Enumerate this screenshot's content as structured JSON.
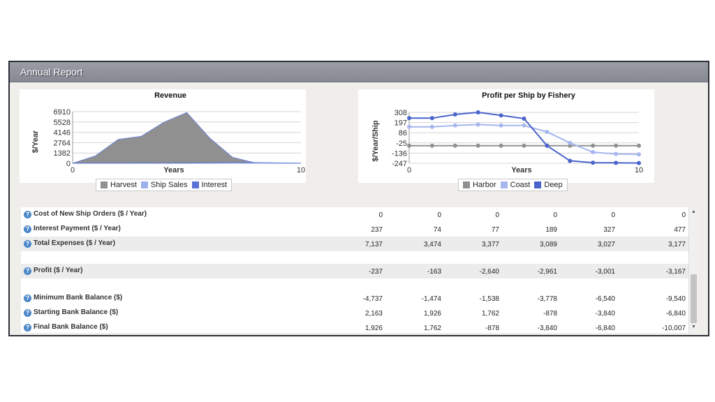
{
  "window": {
    "title": "Annual Report"
  },
  "charts": {
    "revenue": {
      "title": "Revenue",
      "ylabel": "$/Year",
      "xlabel": "Years",
      "y_ticks": [
        "6910",
        "5528",
        "4146",
        "2764",
        "1382",
        "0"
      ],
      "x_ticks": [
        "0",
        "10"
      ],
      "legend": [
        {
          "label": "Harvest",
          "color": "#909090"
        },
        {
          "label": "Ship Sales",
          "color": "#9cb0ec"
        },
        {
          "label": "Interest",
          "color": "#5a73d4"
        }
      ]
    },
    "profit": {
      "title": "Profit per Ship by Fishery",
      "ylabel": "$/Year/Ship",
      "xlabel": "Years",
      "y_ticks": [
        "308",
        "197",
        "86",
        "-25",
        "-136",
        "-247"
      ],
      "x_ticks": [
        "0",
        "10"
      ],
      "legend": [
        {
          "label": "Harbor",
          "color": "#909090"
        },
        {
          "label": "Coast",
          "color": "#a6b6ee"
        },
        {
          "label": "Deep",
          "color": "#4a64cc"
        }
      ]
    }
  },
  "chart_data": [
    {
      "type": "area",
      "title": "Revenue",
      "xlabel": "Years",
      "ylabel": "$/Year",
      "x": [
        0,
        1,
        2,
        3,
        4,
        5,
        6,
        7,
        8,
        9,
        10
      ],
      "xlim": [
        0,
        10
      ],
      "ylim": [
        0,
        6910
      ],
      "series": [
        {
          "name": "Harvest",
          "values": [
            0,
            1000,
            3200,
            3600,
            5500,
            6800,
            3400,
            800,
            50,
            0,
            0
          ]
        },
        {
          "name": "Ship Sales",
          "values": [
            0,
            0,
            0,
            0,
            0,
            0,
            0,
            0,
            0,
            0,
            0
          ]
        },
        {
          "name": "Interest",
          "values": [
            0,
            30,
            30,
            40,
            30,
            40,
            60,
            100,
            100,
            50,
            30
          ]
        }
      ],
      "grid": true,
      "legend_position": "bottom"
    },
    {
      "type": "line",
      "title": "Profit per Ship by Fishery",
      "xlabel": "Years",
      "ylabel": "$/Year/Ship",
      "x": [
        0,
        1,
        2,
        3,
        4,
        5,
        6,
        7,
        8,
        9,
        10
      ],
      "xlim": [
        0,
        10
      ],
      "ylim": [
        -247,
        308
      ],
      "series": [
        {
          "name": "Harbor",
          "values": [
            -55,
            -55,
            -55,
            -55,
            -55,
            -55,
            -55,
            -55,
            -55,
            -55,
            -55
          ]
        },
        {
          "name": "Coast",
          "values": [
            150,
            150,
            165,
            175,
            165,
            165,
            95,
            -25,
            -125,
            -145,
            -150
          ]
        },
        {
          "name": "Deep",
          "values": [
            245,
            245,
            285,
            308,
            275,
            240,
            -55,
            -220,
            -240,
            -242,
            -244
          ]
        }
      ],
      "grid": true,
      "legend_position": "bottom"
    }
  ],
  "table": {
    "rows": [
      {
        "label": "Cost of New Ship Orders ($ / Year)",
        "values": [
          "0",
          "0",
          "0",
          "0",
          "0",
          "0"
        ],
        "shaded": false
      },
      {
        "label": "Interest Payment ($ / Year)",
        "values": [
          "237",
          "74",
          "77",
          "189",
          "327",
          "477"
        ],
        "shaded": false
      },
      {
        "label": "Total Expenses ($ / Year)",
        "values": [
          "7,137",
          "3,474",
          "3,377",
          "3,089",
          "3,027",
          "3,177"
        ],
        "shaded": true
      },
      {
        "label": "Profit ($ / Year)",
        "values": [
          "-237",
          "-163",
          "-2,640",
          "-2,961",
          "-3,001",
          "-3,167"
        ],
        "shaded": true
      },
      {
        "label": "Minimum Bank Balance ($)",
        "values": [
          "-4,737",
          "-1,474",
          "-1,538",
          "-3,778",
          "-6,540",
          "-9,540"
        ],
        "shaded": false
      },
      {
        "label": "Starting Bank Balance ($)",
        "values": [
          "2,163",
          "1,926",
          "1,762",
          "-878",
          "-3,840",
          "-6,840"
        ],
        "shaded": false
      },
      {
        "label": "Final Bank Balance ($)",
        "values": [
          "1,926",
          "1,762",
          "-878",
          "-3,840",
          "-6,840",
          "-10,007"
        ],
        "shaded": false
      }
    ]
  }
}
